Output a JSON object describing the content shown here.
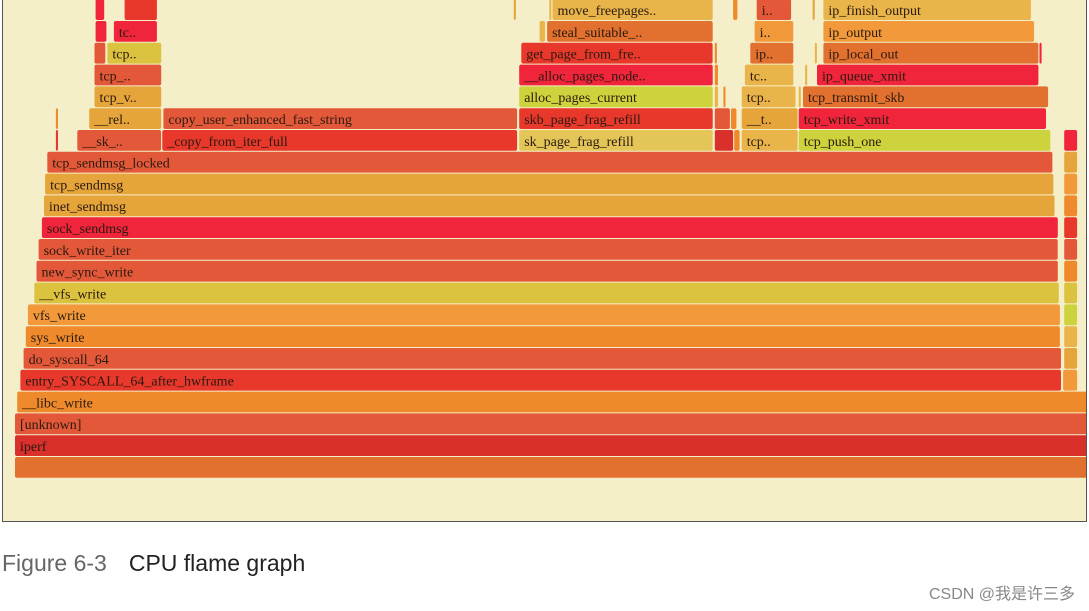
{
  "caption": {
    "figure_number": "Figure 6-3",
    "title": "CPU flame graph"
  },
  "watermark": "CSDN @我是许三多",
  "chart_data": {
    "type": "flamegraph",
    "title": "",
    "colors": {
      "dark_red": "#d9302b",
      "red": "#e8372b",
      "bright_red": "#f0243a",
      "orange_red": "#e4583a",
      "dark_orange": "#e2702f",
      "orange": "#ef8a2c",
      "light_orange": "#f29a3b",
      "amber": "#e5a53b",
      "gold": "#e9b44a",
      "yellow": "#dcc33f",
      "yellow_green": "#cdd33c",
      "light_yellow": "#e3c558",
      "background": "#f5efc9"
    },
    "levels": [
      {
        "depth": 0,
        "frames": [
          {
            "name": "",
            "start": 0.0,
            "width": 0.999,
            "color": "dark_orange"
          }
        ]
      },
      {
        "depth": 1,
        "frames": [
          {
            "name": "iperf",
            "start": 0.0,
            "width": 0.999,
            "color": "dark_red"
          }
        ]
      },
      {
        "depth": 2,
        "frames": [
          {
            "name": "[unknown]",
            "start": 0.0,
            "width": 0.999,
            "color": "orange_red"
          }
        ]
      },
      {
        "depth": 3,
        "frames": [
          {
            "name": "__libc_write",
            "start": 0.002,
            "width": 0.996,
            "color": "orange"
          }
        ]
      },
      {
        "depth": 4,
        "frames": [
          {
            "name": "entry_SYSCALL_64_after_hwframe",
            "start": 0.005,
            "width": 0.968,
            "color": "red"
          },
          {
            "name": "",
            "start": 0.975,
            "width": 0.013,
            "color": "light_orange"
          }
        ]
      },
      {
        "depth": 5,
        "frames": [
          {
            "name": "do_syscall_64",
            "start": 0.008,
            "width": 0.965,
            "color": "orange_red"
          },
          {
            "name": "",
            "start": 0.976,
            "width": 0.012,
            "color": "amber"
          }
        ]
      },
      {
        "depth": 6,
        "frames": [
          {
            "name": "sys_write",
            "start": 0.01,
            "width": 0.962,
            "color": "orange"
          },
          {
            "name": "",
            "start": 0.976,
            "width": 0.012,
            "color": "gold"
          }
        ]
      },
      {
        "depth": 7,
        "frames": [
          {
            "name": "vfs_write",
            "start": 0.012,
            "width": 0.96,
            "color": "light_orange"
          },
          {
            "name": "",
            "start": 0.976,
            "width": 0.012,
            "color": "yellow_green"
          }
        ]
      },
      {
        "depth": 8,
        "frames": [
          {
            "name": "__vfs_write",
            "start": 0.018,
            "width": 0.953,
            "color": "yellow"
          },
          {
            "name": "",
            "start": 0.976,
            "width": 0.012,
            "color": "yellow"
          }
        ]
      },
      {
        "depth": 9,
        "frames": [
          {
            "name": "new_sync_write",
            "start": 0.02,
            "width": 0.95,
            "color": "orange_red"
          },
          {
            "name": "",
            "start": 0.976,
            "width": 0.012,
            "color": "orange"
          }
        ]
      },
      {
        "depth": 10,
        "frames": [
          {
            "name": "sock_write_iter",
            "start": 0.022,
            "width": 0.948,
            "color": "orange_red"
          },
          {
            "name": "",
            "start": 0.976,
            "width": 0.012,
            "color": "orange_red"
          }
        ]
      },
      {
        "depth": 11,
        "frames": [
          {
            "name": "sock_sendmsg",
            "start": 0.025,
            "width": 0.945,
            "color": "bright_red"
          },
          {
            "name": "",
            "start": 0.976,
            "width": 0.012,
            "color": "red"
          }
        ]
      },
      {
        "depth": 12,
        "frames": [
          {
            "name": "inet_sendmsg",
            "start": 0.027,
            "width": 0.94,
            "color": "amber"
          },
          {
            "name": "",
            "start": 0.976,
            "width": 0.012,
            "color": "orange"
          }
        ]
      },
      {
        "depth": 13,
        "frames": [
          {
            "name": "tcp_sendmsg",
            "start": 0.028,
            "width": 0.938,
            "color": "amber"
          },
          {
            "name": "",
            "start": 0.976,
            "width": 0.012,
            "color": "light_orange"
          }
        ]
      },
      {
        "depth": 14,
        "frames": [
          {
            "name": "tcp_sendmsg_locked",
            "start": 0.03,
            "width": 0.935,
            "color": "orange_red"
          },
          {
            "name": "",
            "start": 0.976,
            "width": 0.012,
            "color": "amber"
          }
        ]
      },
      {
        "depth": 15,
        "frames": [
          {
            "name": "",
            "start": 0.038,
            "width": 0.002,
            "color": "red"
          },
          {
            "name": "__sk_..",
            "start": 0.058,
            "width": 0.078,
            "color": "orange_red"
          },
          {
            "name": "_copy_from_iter_full",
            "start": 0.137,
            "width": 0.33,
            "color": "red"
          },
          {
            "name": "sk_page_frag_refill",
            "start": 0.469,
            "width": 0.18,
            "color": "light_yellow"
          },
          {
            "name": "",
            "start": 0.651,
            "width": 0.017,
            "color": "dark_red"
          },
          {
            "name": "",
            "start": 0.669,
            "width": 0.005,
            "color": "orange"
          },
          {
            "name": "tcp..",
            "start": 0.676,
            "width": 0.052,
            "color": "gold"
          },
          {
            "name": "tcp_push_one",
            "start": 0.729,
            "width": 0.234,
            "color": "yellow_green"
          },
          {
            "name": "",
            "start": 0.976,
            "width": 0.012,
            "color": "bright_red"
          }
        ]
      },
      {
        "depth": 16,
        "frames": [
          {
            "name": "",
            "start": 0.038,
            "width": 0.002,
            "color": "orange"
          },
          {
            "name": "__rel..",
            "start": 0.069,
            "width": 0.067,
            "color": "amber"
          },
          {
            "name": "copy_user_enhanced_fast_string",
            "start": 0.138,
            "width": 0.329,
            "color": "orange_red"
          },
          {
            "name": "skb_page_frag_refill",
            "start": 0.469,
            "width": 0.18,
            "color": "red"
          },
          {
            "name": "",
            "start": 0.651,
            "width": 0.014,
            "color": "orange_red"
          },
          {
            "name": "",
            "start": 0.666,
            "width": 0.005,
            "color": "orange"
          },
          {
            "name": "__t..",
            "start": 0.676,
            "width": 0.052,
            "color": "amber"
          },
          {
            "name": "tcp_write_xmit",
            "start": 0.729,
            "width": 0.23,
            "color": "bright_red"
          }
        ]
      },
      {
        "depth": 17,
        "frames": [
          {
            "name": "tcp_v..",
            "start": 0.074,
            "width": 0.062,
            "color": "amber"
          },
          {
            "name": "alloc_pages_current",
            "start": 0.469,
            "width": 0.18,
            "color": "yellow_green"
          },
          {
            "name": "",
            "start": 0.651,
            "width": 0.003,
            "color": "gold"
          },
          {
            "name": "",
            "start": 0.659,
            "width": 0.002,
            "color": "orange"
          },
          {
            "name": "tcp..",
            "start": 0.676,
            "width": 0.05,
            "color": "gold"
          },
          {
            "name": "",
            "start": 0.729,
            "width": 0.002,
            "color": "gold"
          },
          {
            "name": "tcp_transmit_skb",
            "start": 0.733,
            "width": 0.228,
            "color": "dark_orange"
          }
        ]
      },
      {
        "depth": 18,
        "frames": [
          {
            "name": "tcp_..",
            "start": 0.074,
            "width": 0.062,
            "color": "orange_red"
          },
          {
            "name": "__alloc_pages_node..",
            "start": 0.469,
            "width": 0.18,
            "color": "bright_red"
          },
          {
            "name": "",
            "start": 0.651,
            "width": 0.003,
            "color": "orange"
          },
          {
            "name": "tc..",
            "start": 0.679,
            "width": 0.045,
            "color": "gold"
          },
          {
            "name": "",
            "start": 0.735,
            "width": 0.002,
            "color": "gold"
          },
          {
            "name": "ip_queue_xmit",
            "start": 0.746,
            "width": 0.206,
            "color": "bright_red"
          }
        ]
      },
      {
        "depth": 19,
        "frames": [
          {
            "name": "",
            "start": 0.074,
            "width": 0.01,
            "color": "orange_red"
          },
          {
            "name": "tcp..",
            "start": 0.086,
            "width": 0.05,
            "color": "yellow"
          },
          {
            "name": "get_page_from_fre..",
            "start": 0.471,
            "width": 0.178,
            "color": "red"
          },
          {
            "name": "",
            "start": 0.651,
            "width": 0.002,
            "color": "orange"
          },
          {
            "name": "ip..",
            "start": 0.684,
            "width": 0.04,
            "color": "dark_orange"
          },
          {
            "name": "",
            "start": 0.744,
            "width": 0.002,
            "color": "gold"
          },
          {
            "name": "ip_local_out",
            "start": 0.752,
            "width": 0.2,
            "color": "dark_orange"
          },
          {
            "name": "",
            "start": 0.953,
            "width": 0.002,
            "color": "bright_red"
          }
        ]
      },
      {
        "depth": 20,
        "frames": [
          {
            "name": "",
            "start": 0.075,
            "width": 0.01,
            "color": "bright_red"
          },
          {
            "name": "tc..",
            "start": 0.092,
            "width": 0.04,
            "color": "bright_red"
          },
          {
            "name": "",
            "start": 0.488,
            "width": 0.005,
            "color": "gold"
          },
          {
            "name": "steal_suitable_..",
            "start": 0.495,
            "width": 0.154,
            "color": "dark_orange"
          },
          {
            "name": "i..",
            "start": 0.688,
            "width": 0.036,
            "color": "light_orange"
          },
          {
            "name": "ip_output",
            "start": 0.752,
            "width": 0.196,
            "color": "light_orange"
          }
        ]
      },
      {
        "depth": 21,
        "frames": [
          {
            "name": "",
            "start": 0.075,
            "width": 0.008,
            "color": "bright_red"
          },
          {
            "name": "",
            "start": 0.102,
            "width": 0.03,
            "color": "red"
          },
          {
            "name": "",
            "start": 0.464,
            "width": 0.002,
            "color": "amber"
          },
          {
            "name": "",
            "start": 0.497,
            "width": 0.002,
            "color": "gold"
          },
          {
            "name": "move_freepages..",
            "start": 0.5,
            "width": 0.149,
            "color": "gold"
          },
          {
            "name": "",
            "start": 0.668,
            "width": 0.004,
            "color": "orange"
          },
          {
            "name": "i..",
            "start": 0.69,
            "width": 0.032,
            "color": "orange_red"
          },
          {
            "name": "",
            "start": 0.742,
            "width": 0.002,
            "color": "amber"
          },
          {
            "name": "ip_finish_output",
            "start": 0.752,
            "width": 0.193,
            "color": "gold"
          }
        ]
      }
    ]
  }
}
